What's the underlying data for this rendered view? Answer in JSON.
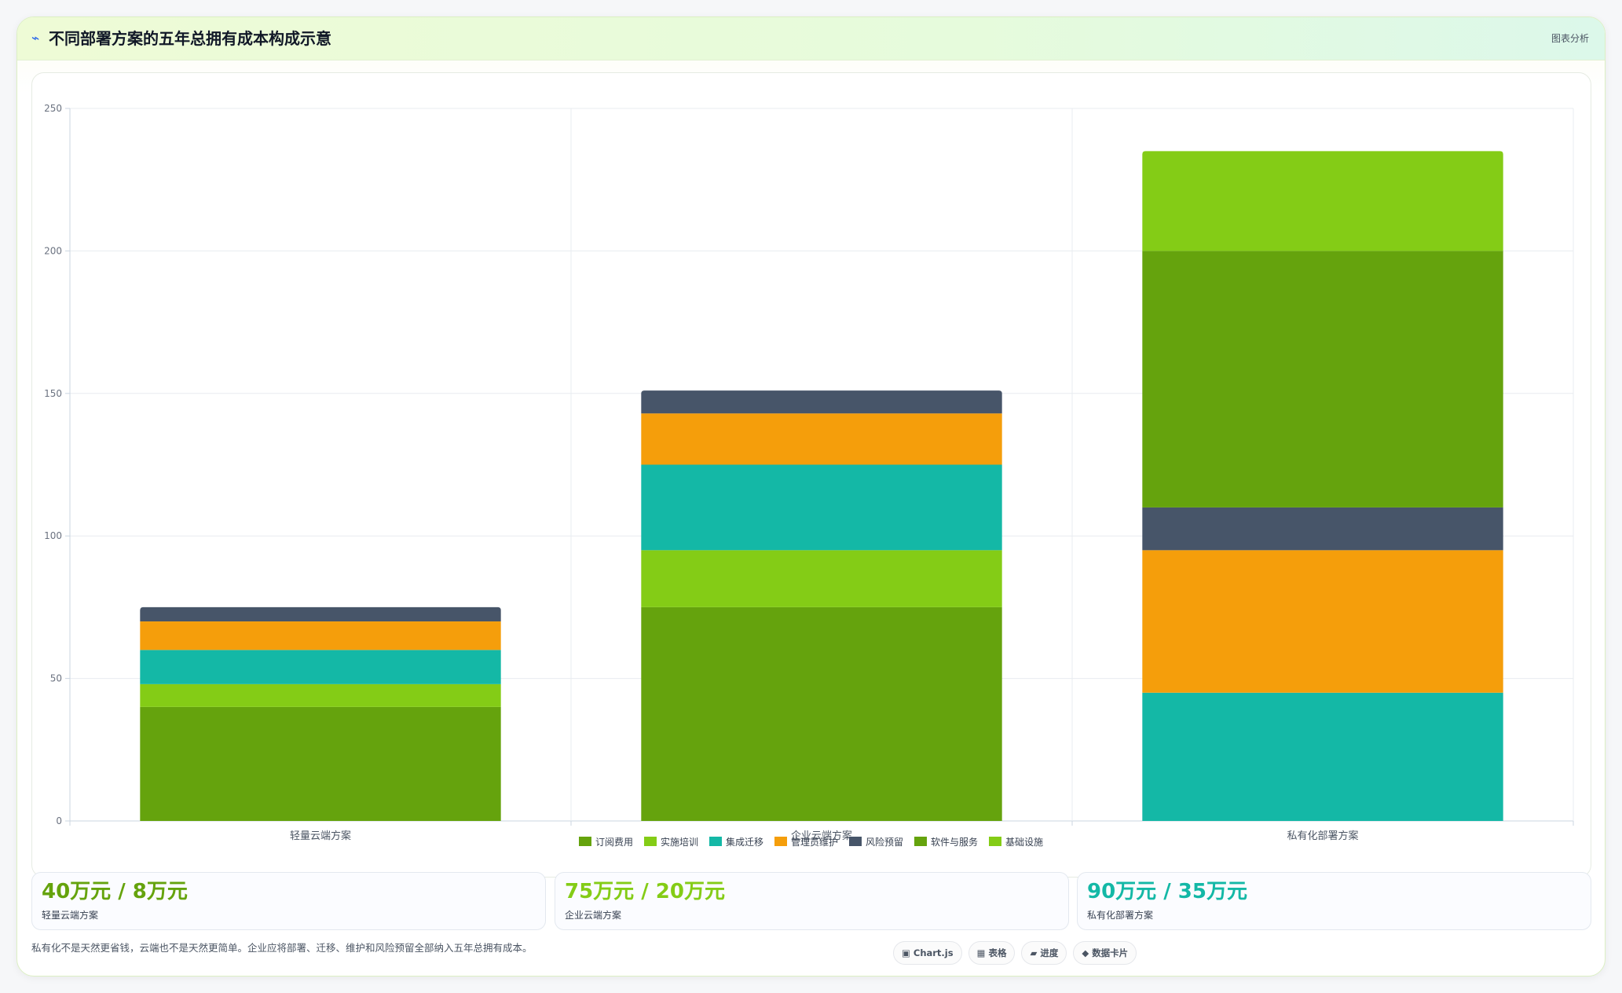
{
  "header": {
    "icon": "trend-icon",
    "title": "不同部署方案的五年总拥有成本构成示意",
    "tag": "图表分析"
  },
  "chart_data": {
    "type": "bar",
    "stacked": true,
    "title": "",
    "xlabel": "",
    "ylabel": "",
    "ylim": [
      0,
      250
    ],
    "yticks": [
      0,
      50,
      100,
      150,
      200,
      250
    ],
    "grid": true,
    "legend_position": "bottom",
    "categories": [
      "轻量云端方案",
      "企业云端方案",
      "私有化部署方案"
    ],
    "series": [
      {
        "name": "订阅费用",
        "color": "#65a30d",
        "values": [
          40,
          75,
          0
        ]
      },
      {
        "name": "实施培训",
        "color": "#84cc16",
        "values": [
          8,
          20,
          0
        ]
      },
      {
        "name": "集成迁移",
        "color": "#14b8a6",
        "values": [
          12,
          30,
          45
        ]
      },
      {
        "name": "管理员维护",
        "color": "#f59e0b",
        "values": [
          10,
          18,
          50
        ]
      },
      {
        "name": "风险预留",
        "color": "#475569",
        "values": [
          5,
          8,
          15
        ]
      },
      {
        "name": "软件与服务",
        "color": "#65a30d",
        "values": [
          0,
          0,
          90
        ]
      },
      {
        "name": "基础设施",
        "color": "#84cc16",
        "values": [
          0,
          0,
          35
        ]
      }
    ]
  },
  "stats": [
    {
      "value": "40万元 / 8万元",
      "label": "轻量云端方案",
      "color": "#65a30d"
    },
    {
      "value": "75万元 / 20万元",
      "label": "企业云端方案",
      "color": "#84cc16"
    },
    {
      "value": "90万元 / 35万元",
      "label": "私有化部署方案",
      "color": "#14b8a6"
    }
  ],
  "footnote": "私有化不是天然更省钱，云端也不是天然更简单。企业应将部署、迁移、维护和风险预留全部纳入五年总拥有成本。",
  "chips": [
    {
      "icon": "▣",
      "label": "Chart.js"
    },
    {
      "icon": "▦",
      "label": "表格"
    },
    {
      "icon": "▰",
      "label": "进度"
    },
    {
      "icon": "◆",
      "label": "数据卡片"
    }
  ]
}
